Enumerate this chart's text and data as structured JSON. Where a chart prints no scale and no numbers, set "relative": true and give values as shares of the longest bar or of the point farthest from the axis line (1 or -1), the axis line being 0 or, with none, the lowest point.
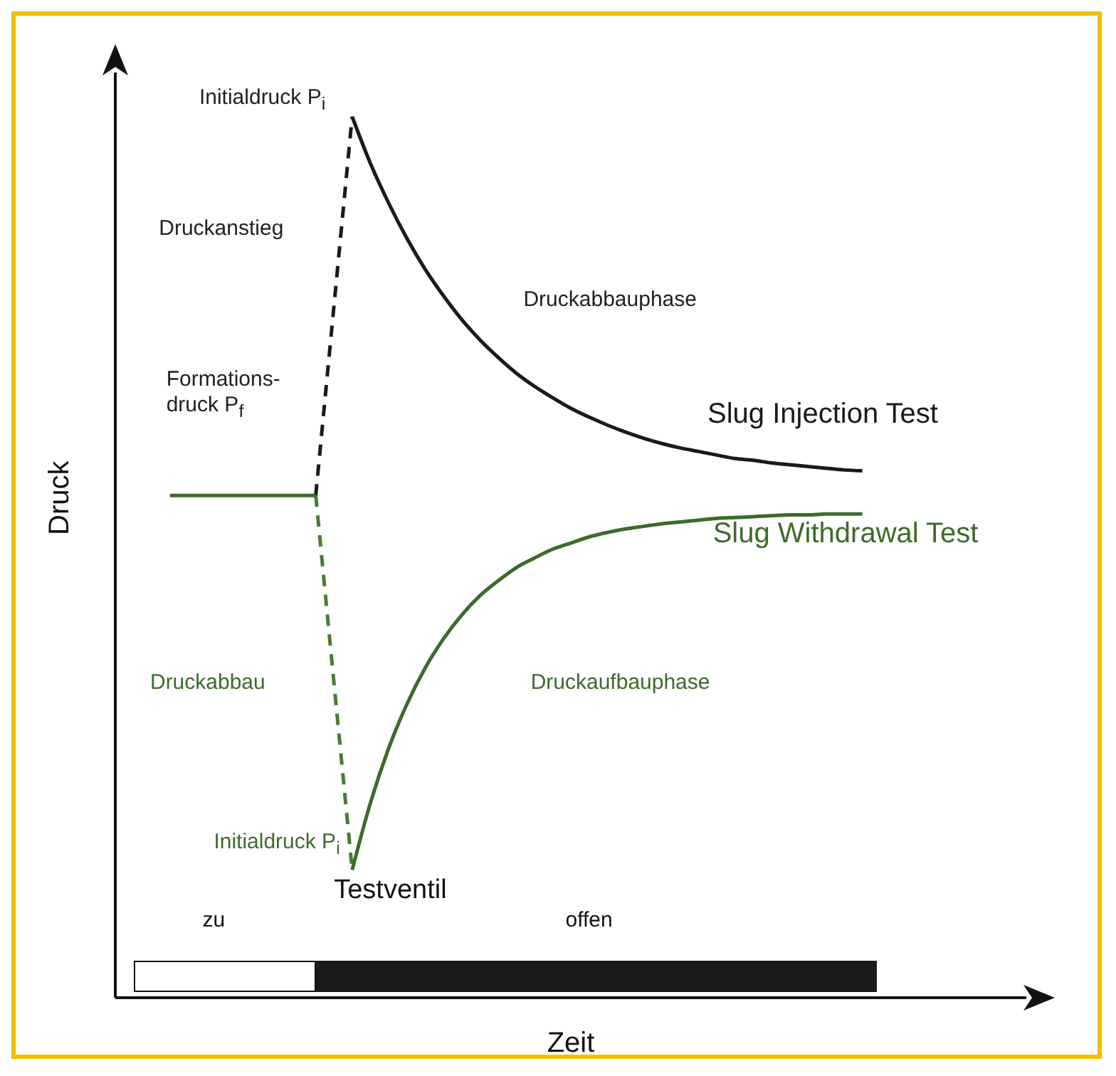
{
  "chart_data": {
    "type": "line",
    "relative": true,
    "xlabel": "Zeit",
    "ylabel": "Druck",
    "legend": false,
    "grid": false,
    "marker": "none",
    "categories": [
      null,
      null,
      null,
      null,
      null,
      null,
      null,
      null,
      null,
      null,
      null,
      null,
      null,
      null,
      null,
      null,
      null,
      null,
      null,
      null,
      null,
      null,
      null,
      null,
      null,
      null,
      null,
      null,
      null,
      null,
      null,
      null,
      null,
      null,
      null,
      null,
      null,
      null,
      null
    ],
    "series": [
      {
        "name": "Slug Injection Test",
        "color": "#1a1a1a",
        "line_style": "solid",
        "values": [
          null,
          null,
          null,
          null,
          null,
          null,
          null,
          null,
          null,
          null,
          1,
          0.947,
          0.902,
          0.862,
          0.827,
          0.797,
          0.77,
          0.747,
          0.727,
          0.709,
          0.694,
          0.681,
          0.669,
          0.659,
          0.65,
          0.642,
          0.635,
          0.629,
          0.624,
          0.62,
          0.616,
          0.612,
          0.61,
          0.607,
          0.605,
          0.603,
          0.601,
          0.599,
          0.598
        ]
      },
      {
        "color": "#1a1a1a",
        "line_style": "dashed",
        "values": [
          null,
          null,
          null,
          null,
          null,
          null,
          null,
          null,
          0.57,
          null,
          1,
          null,
          null,
          null,
          null,
          null,
          null,
          null,
          null,
          null,
          null,
          null,
          null,
          null,
          null,
          null,
          null,
          null,
          null,
          null,
          null,
          null,
          null,
          null,
          null,
          null,
          null,
          null,
          null
        ]
      },
      {
        "name": "Slug Withdrawal Test",
        "color": "#3d6b2a",
        "line_style": "solid",
        "values": [
          0.57,
          0.57,
          0.57,
          0.57,
          0.57,
          0.57,
          0.57,
          0.57,
          0.57,
          null,
          0.145,
          0.221,
          0.283,
          0.333,
          0.374,
          0.407,
          0.434,
          0.456,
          0.473,
          0.488,
          0.499,
          0.509,
          0.516,
          0.523,
          0.528,
          0.532,
          0.535,
          0.538,
          0.54,
          0.542,
          0.544,
          0.545,
          0.546,
          0.547,
          0.548,
          0.548,
          0.549,
          0.549,
          0.549
        ]
      },
      {
        "color": "#4a7c34",
        "line_style": "dashed",
        "values": [
          null,
          null,
          null,
          null,
          null,
          null,
          null,
          null,
          0.57,
          null,
          0.145,
          null,
          null,
          null,
          null,
          null,
          null,
          null,
          null,
          null,
          null,
          null,
          null,
          null,
          null,
          null,
          null,
          null,
          null,
          null,
          null,
          null,
          null,
          null,
          null,
          null,
          null,
          null,
          null
        ]
      }
    ],
    "annotations": [
      "Initialdruck P$_{i}$",
      "Druckanstieg",
      "Druckabbauphase",
      "Formations-druck P$_{f}$",
      "Druckabbau",
      "Druckaufbauphase",
      "Initialdruck P$_{i}$",
      "Testventil",
      "zu",
      "offen"
    ]
  }
}
